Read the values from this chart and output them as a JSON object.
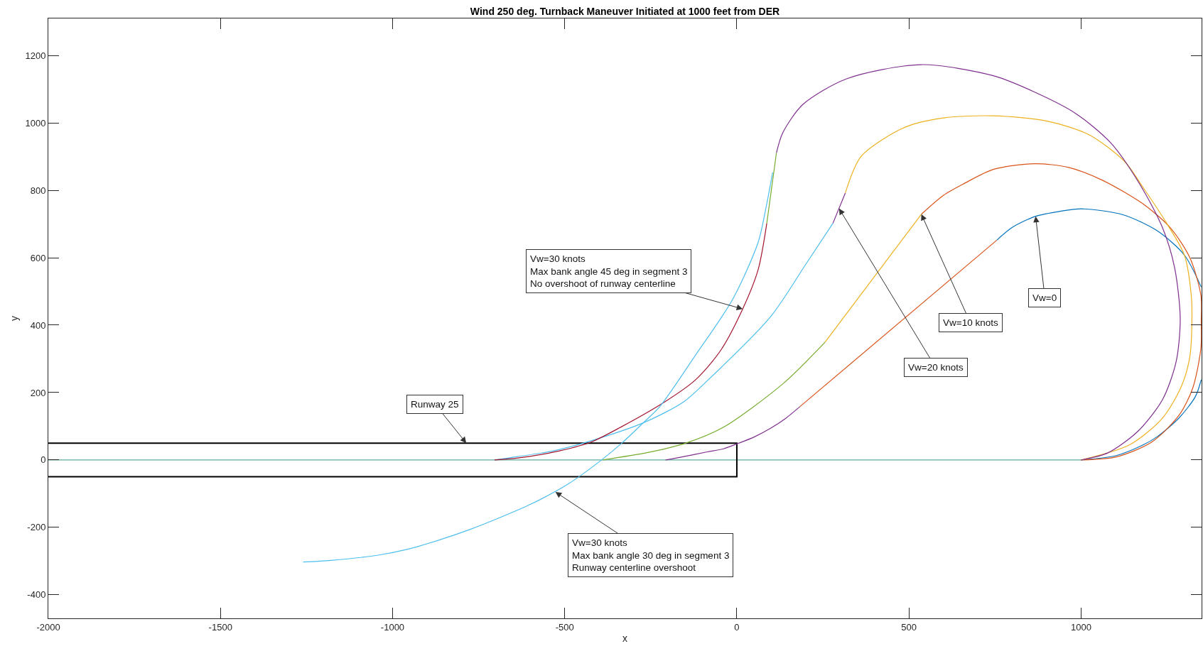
{
  "chart_data": {
    "type": "line",
    "title": "Wind 250 deg. Turnback Maneuver Initiated at 1000 feet from DER",
    "xlabel": "x",
    "ylabel": "y",
    "xlim": [
      -2000,
      1350
    ],
    "ylim": [
      -470,
      1310
    ],
    "xticks": [
      -2000,
      -1500,
      -1000,
      -500,
      0,
      500,
      1000
    ],
    "yticks": [
      -400,
      -200,
      0,
      200,
      400,
      600,
      800,
      1000,
      1200
    ],
    "series": [
      {
        "color": "#5aab9e",
        "x": [
          -2000,
          1000
        ],
        "values": [
          0,
          0
        ]
      },
      {
        "color": "#000000",
        "x": [
          -2000,
          0,
          0,
          -2000
        ],
        "values": [
          50,
          50,
          -50,
          -50
        ]
      },
      {
        "color": "#0072bd",
        "x": [
          1000,
          1102,
          1181,
          1221,
          1284,
          1332,
          1349,
          null,
          1349,
          1300,
          1221,
          1120,
          1003,
          940,
          868,
          800,
          755
        ],
        "values": [
          0,
          13,
          45,
          69,
          124,
          188,
          238,
          null,
          513,
          608,
          680,
          728,
          745,
          738,
          723,
          690,
          652
        ]
      },
      {
        "color": "#d95319",
        "x": [
          755,
          183
        ],
        "values": [
          652,
          158
        ]
      },
      {
        "color": "#7e2f8e",
        "x": [
          183,
          140,
          98,
          50,
          1,
          -39,
          -86,
          -159,
          -207
        ],
        "values": [
          158,
          122,
          94,
          68,
          48,
          33,
          24,
          9,
          0
        ]
      },
      {
        "color": "#d95319",
        "x": [
          1000,
          1102,
          1205,
          1284,
          1324,
          1348,
          1349,
          1348,
          1316,
          1260,
          1181,
          1062,
          964,
          864,
          745,
          660,
          600,
          536
        ],
        "values": [
          0,
          9,
          53,
          132,
          212,
          331,
          410,
          489,
          600,
          688,
          759,
          830,
          868,
          879,
          862,
          820,
          785,
          729
        ]
      },
      {
        "color": "#edb120",
        "x": [
          536,
          256
        ],
        "values": [
          729,
          349
        ]
      },
      {
        "color": "#77ac30",
        "x": [
          256,
          135,
          -39,
          -148,
          -259,
          -389
        ],
        "values": [
          349,
          227,
          97,
          50,
          22,
          0
        ]
      },
      {
        "color": "#edb120",
        "x": [
          1000,
          1141,
          1237,
          1292,
          1316,
          1322,
          1320,
          1300,
          1253,
          1181,
          1126,
          1023,
          904,
          745,
          600,
          488,
          362,
          315
        ],
        "values": [
          0,
          45,
          125,
          220,
          307,
          418,
          489,
          608,
          695,
          807,
          886,
          965,
          1005,
          1021,
          1015,
          987,
          902,
          792
        ]
      },
      {
        "color": "#7e2f8e",
        "x": [
          315,
          279
        ],
        "values": [
          792,
          702
        ]
      },
      {
        "color": "#4dbeee",
        "x": [
          279,
          200,
          98,
          -86,
          -155,
          -272,
          -423,
          -533,
          -636,
          -704
        ],
        "values": [
          702,
          580,
          425,
          235,
          172,
          110,
          57,
          27,
          10,
          0
        ]
      },
      {
        "color": "#7e2f8e",
        "x": [
          1000,
          1078,
          1165,
          1237,
          1276,
          1288,
          1272,
          1237,
          1173,
          1086,
          983,
          864,
          745,
          535,
          319,
          192,
          133,
          115
        ],
        "values": [
          0,
          21,
          85,
          180,
          291,
          418,
          569,
          688,
          814,
          941,
          1029,
          1092,
          1140,
          1173,
          1131,
          1055,
          970,
          911
        ]
      },
      {
        "color": "#77ac30",
        "x": [
          115,
          87
        ],
        "values": [
          911,
          702
        ]
      },
      {
        "color": "#a2142f",
        "x": [
          87,
          62,
          17,
          -49,
          -122,
          -210,
          -336,
          -424,
          -533,
          -636,
          -704
        ],
        "values": [
          702,
          565,
          448,
          322,
          236,
          172,
          98,
          53,
          23,
          6,
          0
        ]
      },
      {
        "color": "#4dbeee",
        "x": [
          104,
          85,
          62,
          -12,
          -122,
          -224,
          -272,
          -334,
          -393,
          -491,
          -598,
          -688,
          -777,
          -866,
          -956,
          -1045,
          -1179,
          -1260
        ],
        "values": [
          853,
          750,
          646,
          477,
          308,
          158,
          110,
          50,
          0,
          -72,
          -131,
          -171,
          -207,
          -238,
          -265,
          -283,
          -298,
          -303
        ]
      }
    ],
    "annotations": [
      {
        "text": "Runway 25",
        "x": -786,
        "y": 50
      },
      {
        "text": "Vw=30 knots\nMax bank angle 45 deg in segment 3\nNo overshoot of runway centerline",
        "x": 17,
        "y": 448
      },
      {
        "text": "Vw=30 knots\nMax bank angle 30 deg in segment 3\nRunway centerline overshoot",
        "x": -527,
        "y": -95
      },
      {
        "text": "Vw=20 knots",
        "x": 297,
        "y": 746
      },
      {
        "text": "Vw=10 knots",
        "x": 536,
        "y": 729
      },
      {
        "text": "Vw=0",
        "x": 868,
        "y": 723
      }
    ]
  }
}
